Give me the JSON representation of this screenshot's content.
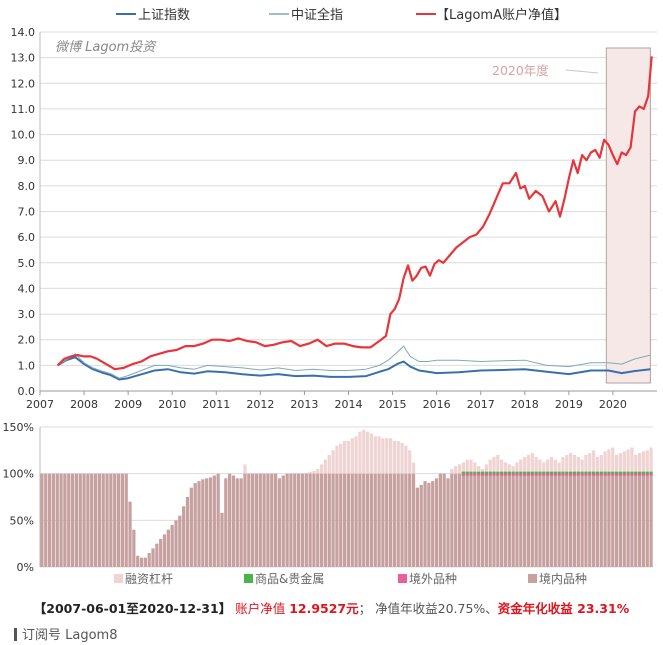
{
  "chart_data": [
    {
      "type": "line",
      "watermark": "微博 Lagom投资",
      "legend_position": "top",
      "x_ticks": [
        "2007",
        "2008",
        "2009",
        "2010",
        "2011",
        "2012",
        "2013",
        "2014",
        "2015",
        "2016",
        "2017",
        "2018",
        "2019",
        "2020"
      ],
      "ylim": [
        0,
        14
      ],
      "y_ticks": [
        "0.0",
        "1.0",
        "2.0",
        "3.0",
        "4.0",
        "5.0",
        "6.0",
        "7.0",
        "8.0",
        "9.0",
        "10.0",
        "11.0",
        "12.0",
        "13.0",
        "14.0"
      ],
      "grid": true,
      "highlight": {
        "label": "2020年度",
        "x_range": [
          2019.85,
          2020.85
        ]
      },
      "series": [
        {
          "name": "上证指数",
          "color": "#3a6fae",
          "x": [
            2007.4,
            2007.6,
            2007.8,
            2008.0,
            2008.2,
            2008.4,
            2008.6,
            2008.8,
            2009.0,
            2009.3,
            2009.6,
            2009.9,
            2010.2,
            2010.5,
            2010.8,
            2011.2,
            2011.6,
            2012.0,
            2012.4,
            2012.8,
            2013.2,
            2013.6,
            2014.0,
            2014.4,
            2014.7,
            2014.9,
            2015.1,
            2015.25,
            2015.4,
            2015.6,
            2015.8,
            2016.0,
            2016.5,
            2017.0,
            2017.5,
            2018.0,
            2018.5,
            2019.0,
            2019.5,
            2019.9,
            2020.2,
            2020.5,
            2020.85
          ],
          "y": [
            1.0,
            1.2,
            1.32,
            1.05,
            0.85,
            0.72,
            0.62,
            0.45,
            0.5,
            0.65,
            0.8,
            0.85,
            0.73,
            0.68,
            0.77,
            0.73,
            0.65,
            0.6,
            0.66,
            0.58,
            0.6,
            0.55,
            0.55,
            0.58,
            0.75,
            0.85,
            1.05,
            1.15,
            0.95,
            0.8,
            0.75,
            0.7,
            0.73,
            0.8,
            0.82,
            0.85,
            0.75,
            0.66,
            0.8,
            0.8,
            0.7,
            0.78,
            0.85
          ]
        },
        {
          "name": "中证全指",
          "color": "#7eaab8",
          "x": [
            2007.4,
            2007.6,
            2007.8,
            2008.0,
            2008.2,
            2008.4,
            2008.6,
            2008.8,
            2009.0,
            2009.3,
            2009.6,
            2009.9,
            2010.2,
            2010.5,
            2010.8,
            2011.2,
            2011.6,
            2012.0,
            2012.4,
            2012.8,
            2013.2,
            2013.6,
            2014.0,
            2014.4,
            2014.7,
            2014.9,
            2015.1,
            2015.25,
            2015.4,
            2015.6,
            2015.8,
            2016.0,
            2016.5,
            2017.0,
            2017.5,
            2018.0,
            2018.5,
            2019.0,
            2019.5,
            2019.9,
            2020.2,
            2020.5,
            2020.85
          ],
          "y": [
            1.0,
            1.22,
            1.45,
            1.1,
            0.9,
            0.78,
            0.68,
            0.5,
            0.6,
            0.8,
            1.0,
            1.0,
            0.9,
            0.85,
            1.0,
            0.95,
            0.9,
            0.82,
            0.9,
            0.8,
            0.85,
            0.8,
            0.8,
            0.85,
            1.0,
            1.2,
            1.5,
            1.75,
            1.35,
            1.15,
            1.15,
            1.2,
            1.2,
            1.15,
            1.18,
            1.2,
            1.0,
            0.95,
            1.1,
            1.1,
            1.05,
            1.25,
            1.4
          ]
        },
        {
          "name": "【LagomA账户净值】",
          "color": "#e8343b",
          "x": [
            2007.4,
            2007.55,
            2007.7,
            2007.85,
            2008.0,
            2008.15,
            2008.3,
            2008.5,
            2008.7,
            2008.9,
            2009.1,
            2009.3,
            2009.5,
            2009.7,
            2009.9,
            2010.1,
            2010.3,
            2010.5,
            2010.7,
            2010.9,
            2011.1,
            2011.3,
            2011.5,
            2011.7,
            2011.9,
            2012.1,
            2012.3,
            2012.5,
            2012.7,
            2012.9,
            2013.1,
            2013.3,
            2013.5,
            2013.7,
            2013.9,
            2014.1,
            2014.3,
            2014.5,
            2014.7,
            2014.85,
            2014.95,
            2015.05,
            2015.15,
            2015.25,
            2015.35,
            2015.45,
            2015.55,
            2015.65,
            2015.75,
            2015.85,
            2015.95,
            2016.05,
            2016.15,
            2016.3,
            2016.45,
            2016.6,
            2016.75,
            2016.9,
            2017.05,
            2017.2,
            2017.35,
            2017.5,
            2017.65,
            2017.8,
            2017.9,
            2018.0,
            2018.1,
            2018.25,
            2018.4,
            2018.55,
            2018.7,
            2018.8,
            2018.9,
            2019.0,
            2019.1,
            2019.2,
            2019.3,
            2019.4,
            2019.5,
            2019.6,
            2019.7,
            2019.8,
            2019.9,
            2020.0,
            2020.1,
            2020.2,
            2020.3,
            2020.4,
            2020.5,
            2020.6,
            2020.7,
            2020.8,
            2020.88
          ],
          "y": [
            1.0,
            1.25,
            1.35,
            1.4,
            1.35,
            1.35,
            1.25,
            1.05,
            0.85,
            0.9,
            1.05,
            1.15,
            1.35,
            1.45,
            1.55,
            1.6,
            1.75,
            1.75,
            1.85,
            2.0,
            2.0,
            1.95,
            2.05,
            1.95,
            1.9,
            1.75,
            1.8,
            1.9,
            1.95,
            1.75,
            1.85,
            2.0,
            1.75,
            1.85,
            1.85,
            1.75,
            1.7,
            1.7,
            1.95,
            2.15,
            3.0,
            3.2,
            3.6,
            4.4,
            4.9,
            4.3,
            4.5,
            4.8,
            4.85,
            4.5,
            4.95,
            5.1,
            5.0,
            5.3,
            5.6,
            5.8,
            6.0,
            6.1,
            6.4,
            6.9,
            7.5,
            8.1,
            8.1,
            8.5,
            7.9,
            8.0,
            7.5,
            7.8,
            7.6,
            7.0,
            7.4,
            6.8,
            7.5,
            8.3,
            9.0,
            8.5,
            9.2,
            9.0,
            9.3,
            9.4,
            9.1,
            9.8,
            9.6,
            9.2,
            8.85,
            9.3,
            9.2,
            9.5,
            10.9,
            11.1,
            11.0,
            11.5,
            13.05
          ]
        }
      ]
    },
    {
      "type": "bar",
      "ylim": [
        0,
        150
      ],
      "y_ticks": [
        "0%",
        "50%",
        "100%",
        "150%"
      ],
      "legend_position": "bottom",
      "series_names": [
        "融资杠杆",
        "商品&贵金属",
        "境外品种",
        "境内品种"
      ],
      "series_colors": [
        "#f0d4d4",
        "#4ab34a",
        "#e85f9a",
        "#c7a0a0"
      ],
      "total": [
        100,
        100,
        100,
        100,
        100,
        100,
        100,
        100,
        100,
        100,
        100,
        100,
        100,
        100,
        100,
        100,
        100,
        100,
        100,
        100,
        100,
        100,
        100,
        70,
        40,
        12,
        10,
        10,
        15,
        20,
        25,
        30,
        35,
        40,
        45,
        50,
        55,
        65,
        75,
        85,
        90,
        92,
        94,
        95,
        96,
        98,
        100,
        58,
        95,
        100,
        98,
        95,
        95,
        110,
        100,
        100,
        100,
        100,
        100,
        100,
        100,
        100,
        95,
        98,
        100,
        100,
        100,
        100,
        100,
        101,
        102,
        103,
        105,
        110,
        115,
        120,
        125,
        130,
        132,
        135,
        135,
        138,
        140,
        145,
        147,
        145,
        143,
        140,
        140,
        138,
        138,
        138,
        135,
        135,
        133,
        130,
        125,
        112,
        85,
        88,
        92,
        90,
        92,
        95,
        100,
        100,
        95,
        105,
        108,
        110,
        112,
        115,
        115,
        112,
        108,
        105,
        110,
        115,
        118,
        120,
        115,
        112,
        110,
        108,
        112,
        115,
        118,
        120,
        122,
        118,
        115,
        112,
        115,
        118,
        115,
        112,
        118,
        120,
        122,
        120,
        118,
        115,
        120,
        122,
        125,
        118,
        120,
        124,
        126,
        128,
        120,
        122,
        124,
        126,
        128,
        120,
        122,
        124,
        125,
        128
      ]
    }
  ],
  "footer": {
    "period": "【2007-06-01至2020-12-31】",
    "nav_label": "账户净值",
    "nav_value": "12.9527元",
    "sep": "；",
    "nav_annual": "净值年收益20.75%、",
    "capital_annual": "资金年化收益 23.31%"
  },
  "subscription": "订阅号 Lagom8"
}
